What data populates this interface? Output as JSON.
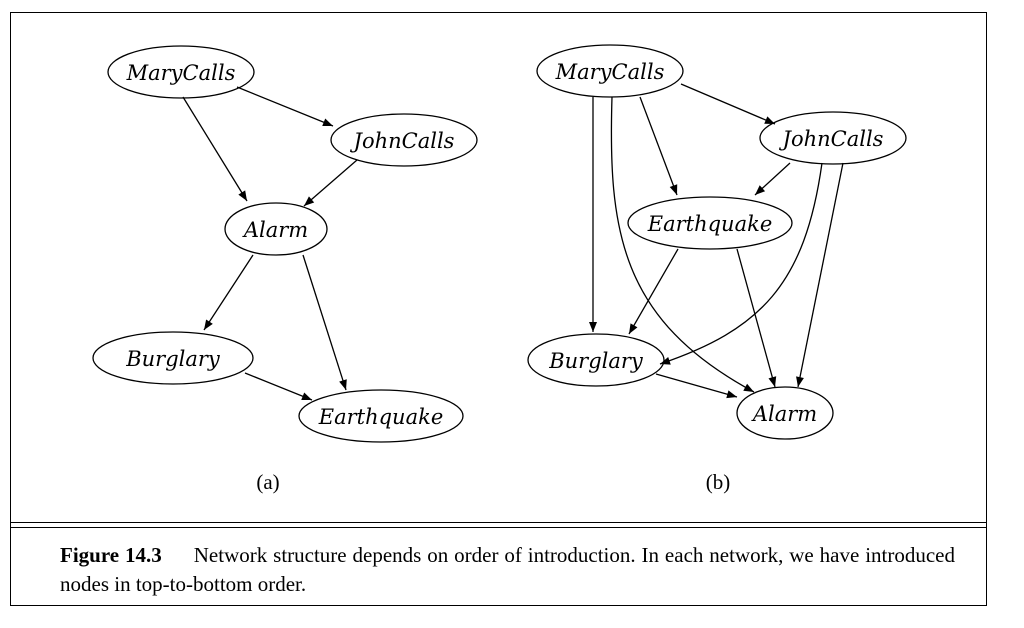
{
  "diagram": {
    "panel_a": {
      "label": "(a)",
      "nodes": {
        "marycalls": "MaryCalls",
        "johncalls": "JohnCalls",
        "alarm": "Alarm",
        "burglary": "Burglary",
        "earthquake": "Earthquake"
      },
      "edges": [
        [
          "MaryCalls",
          "JohnCalls"
        ],
        [
          "MaryCalls",
          "Alarm"
        ],
        [
          "JohnCalls",
          "Alarm"
        ],
        [
          "Alarm",
          "Burglary"
        ],
        [
          "Alarm",
          "Earthquake"
        ],
        [
          "Burglary",
          "Earthquake"
        ]
      ]
    },
    "panel_b": {
      "label": "(b)",
      "nodes": {
        "marycalls": "MaryCalls",
        "johncalls": "JohnCalls",
        "earthquake": "Earthquake",
        "burglary": "Burglary",
        "alarm": "Alarm"
      },
      "edges": [
        [
          "MaryCalls",
          "JohnCalls"
        ],
        [
          "MaryCalls",
          "Earthquake"
        ],
        [
          "MaryCalls",
          "Burglary"
        ],
        [
          "MaryCalls",
          "Alarm"
        ],
        [
          "JohnCalls",
          "Earthquake"
        ],
        [
          "JohnCalls",
          "Burglary"
        ],
        [
          "JohnCalls",
          "Alarm"
        ],
        [
          "Earthquake",
          "Burglary"
        ],
        [
          "Earthquake",
          "Alarm"
        ],
        [
          "Burglary",
          "Alarm"
        ]
      ]
    }
  },
  "caption": {
    "figure_number": "Figure 14.3",
    "text": "Network structure depends on order of introduction. In each network, we have introduced nodes in top-to-bottom order."
  }
}
